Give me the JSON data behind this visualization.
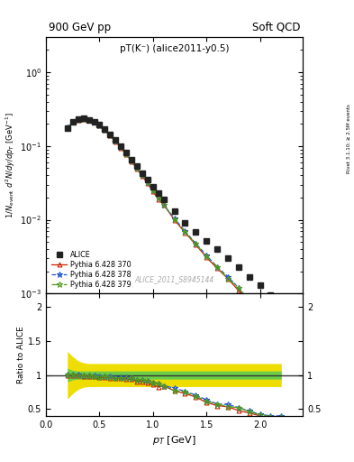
{
  "title_left": "900 GeV pp",
  "title_right": "Soft QCD",
  "plot_label": "pT(K⁻) (alice2011-y0.5)",
  "watermark": "ALICE_2011_S8945144",
  "right_label": "Rivet 3.1.10; ≥ 2.5M events",
  "ylabel_main": "1/N$_{event}$ d$^2$N/dy/dp$_T$ [GeV$^{-1}$]",
  "ylabel_ratio": "Ratio to ALICE",
  "xlabel": "p$_T$ [GeV]",
  "ylim_main_lo": 0.001,
  "ylim_main_hi": 3.0,
  "ylim_ratio_lo": 0.4,
  "ylim_ratio_hi": 2.2,
  "xlim_lo": 0.0,
  "xlim_hi": 2.4,
  "alice_pt": [
    0.2,
    0.25,
    0.3,
    0.35,
    0.4,
    0.45,
    0.5,
    0.55,
    0.6,
    0.65,
    0.7,
    0.75,
    0.8,
    0.85,
    0.9,
    0.95,
    1.0,
    1.05,
    1.1,
    1.2,
    1.3,
    1.4,
    1.5,
    1.6,
    1.7,
    1.8,
    1.9,
    2.0,
    2.1,
    2.2
  ],
  "alice_y": [
    0.175,
    0.21,
    0.23,
    0.235,
    0.228,
    0.215,
    0.195,
    0.17,
    0.145,
    0.122,
    0.1,
    0.082,
    0.066,
    0.054,
    0.043,
    0.035,
    0.028,
    0.023,
    0.019,
    0.013,
    0.0092,
    0.0068,
    0.0052,
    0.004,
    0.003,
    0.0023,
    0.0017,
    0.0013,
    0.00095,
    0.00068
  ],
  "p370_pt": [
    0.2,
    0.25,
    0.3,
    0.35,
    0.4,
    0.45,
    0.5,
    0.55,
    0.6,
    0.65,
    0.7,
    0.75,
    0.8,
    0.85,
    0.9,
    0.95,
    1.0,
    1.05,
    1.1,
    1.2,
    1.3,
    1.4,
    1.5,
    1.6,
    1.7,
    1.8,
    1.9,
    2.0,
    2.1,
    2.2
  ],
  "p370_y": [
    0.175,
    0.21,
    0.228,
    0.232,
    0.224,
    0.21,
    0.188,
    0.164,
    0.139,
    0.116,
    0.095,
    0.077,
    0.062,
    0.049,
    0.039,
    0.031,
    0.024,
    0.019,
    0.016,
    0.01,
    0.0067,
    0.0046,
    0.0031,
    0.0022,
    0.0016,
    0.0011,
    0.00075,
    0.00052,
    0.00035,
    0.00025
  ],
  "p378_pt": [
    0.2,
    0.25,
    0.3,
    0.35,
    0.4,
    0.45,
    0.5,
    0.55,
    0.6,
    0.65,
    0.7,
    0.75,
    0.8,
    0.85,
    0.9,
    0.95,
    1.0,
    1.05,
    1.1,
    1.2,
    1.3,
    1.4,
    1.5,
    1.6,
    1.7,
    1.8,
    1.9,
    2.0,
    2.1,
    2.2
  ],
  "p378_y": [
    0.177,
    0.212,
    0.231,
    0.235,
    0.227,
    0.213,
    0.191,
    0.167,
    0.142,
    0.118,
    0.097,
    0.079,
    0.063,
    0.05,
    0.04,
    0.032,
    0.025,
    0.02,
    0.016,
    0.0105,
    0.007,
    0.0048,
    0.0033,
    0.0023,
    0.0017,
    0.0012,
    0.0008,
    0.00055,
    0.00038,
    0.00027
  ],
  "p379_pt": [
    0.2,
    0.25,
    0.3,
    0.35,
    0.4,
    0.45,
    0.5,
    0.55,
    0.6,
    0.65,
    0.7,
    0.75,
    0.8,
    0.85,
    0.9,
    0.95,
    1.0,
    1.05,
    1.1,
    1.2,
    1.3,
    1.4,
    1.5,
    1.6,
    1.7,
    1.8,
    1.9,
    2.0,
    2.1,
    2.2
  ],
  "p379_y": [
    0.176,
    0.211,
    0.23,
    0.234,
    0.226,
    0.212,
    0.19,
    0.166,
    0.141,
    0.117,
    0.096,
    0.078,
    0.063,
    0.05,
    0.04,
    0.032,
    0.025,
    0.02,
    0.016,
    0.0103,
    0.0069,
    0.0047,
    0.0032,
    0.0023,
    0.0016,
    0.0012,
    0.00078,
    0.00054,
    0.00037,
    0.00026
  ],
  "ratio_pt": [
    0.2,
    0.25,
    0.3,
    0.35,
    0.4,
    0.45,
    0.5,
    0.55,
    0.6,
    0.65,
    0.7,
    0.75,
    0.8,
    0.85,
    0.9,
    0.95,
    1.0,
    1.05,
    1.1,
    1.2,
    1.3,
    1.4,
    1.5,
    1.6,
    1.7,
    1.8,
    1.9,
    2.0,
    2.1,
    2.2
  ],
  "ratio_band_green_lo": [
    0.9,
    0.93,
    0.94,
    0.94,
    0.94,
    0.94,
    0.94,
    0.94,
    0.94,
    0.94,
    0.94,
    0.94,
    0.94,
    0.94,
    0.94,
    0.94,
    0.94,
    0.94,
    0.94,
    0.94,
    0.94,
    0.94,
    0.94,
    0.94,
    0.94,
    0.94,
    0.94,
    0.94,
    0.94,
    0.94
  ],
  "ratio_band_green_hi": [
    1.1,
    1.07,
    1.06,
    1.06,
    1.06,
    1.06,
    1.06,
    1.06,
    1.06,
    1.06,
    1.06,
    1.06,
    1.06,
    1.06,
    1.06,
    1.06,
    1.06,
    1.06,
    1.06,
    1.06,
    1.06,
    1.06,
    1.06,
    1.06,
    1.06,
    1.06,
    1.06,
    1.06,
    1.06,
    1.06
  ],
  "ratio_band_yellow_lo": [
    0.65,
    0.73,
    0.79,
    0.82,
    0.83,
    0.83,
    0.83,
    0.83,
    0.83,
    0.83,
    0.83,
    0.83,
    0.83,
    0.83,
    0.83,
    0.83,
    0.83,
    0.83,
    0.83,
    0.83,
    0.83,
    0.83,
    0.83,
    0.83,
    0.83,
    0.83,
    0.83,
    0.83,
    0.83,
    0.83
  ],
  "ratio_band_yellow_hi": [
    1.35,
    1.27,
    1.21,
    1.18,
    1.17,
    1.17,
    1.17,
    1.17,
    1.17,
    1.17,
    1.17,
    1.17,
    1.17,
    1.17,
    1.17,
    1.17,
    1.17,
    1.17,
    1.17,
    1.17,
    1.17,
    1.17,
    1.17,
    1.17,
    1.17,
    1.17,
    1.17,
    1.17,
    1.17,
    1.17
  ],
  "ratio_p370": [
    1.0,
    1.0,
    0.99,
    0.987,
    0.982,
    0.977,
    0.964,
    0.965,
    0.959,
    0.951,
    0.95,
    0.939,
    0.939,
    0.907,
    0.907,
    0.886,
    0.857,
    0.826,
    0.842,
    0.769,
    0.728,
    0.676,
    0.596,
    0.55,
    0.533,
    0.478,
    0.441,
    0.4,
    0.368,
    0.368
  ],
  "ratio_p378": [
    1.011,
    1.01,
    1.004,
    1.0,
    0.996,
    0.991,
    0.979,
    0.982,
    0.979,
    0.967,
    0.97,
    0.963,
    0.955,
    0.926,
    0.93,
    0.914,
    0.893,
    0.87,
    0.842,
    0.808,
    0.761,
    0.706,
    0.635,
    0.575,
    0.567,
    0.522,
    0.471,
    0.423,
    0.4,
    0.397
  ],
  "ratio_p379": [
    1.006,
    1.005,
    1.0,
    0.996,
    0.991,
    0.986,
    0.974,
    0.976,
    0.972,
    0.959,
    0.96,
    0.951,
    0.955,
    0.926,
    0.93,
    0.914,
    0.893,
    0.87,
    0.842,
    0.769,
    0.75,
    0.691,
    0.615,
    0.575,
    0.533,
    0.522,
    0.459,
    0.415,
    0.389,
    0.382
  ],
  "color_alice": "#222222",
  "color_p370": "#cc2200",
  "color_p378": "#2255cc",
  "color_p379": "#559922",
  "color_green_band": "#55cc55",
  "color_yellow_band": "#eedd00"
}
